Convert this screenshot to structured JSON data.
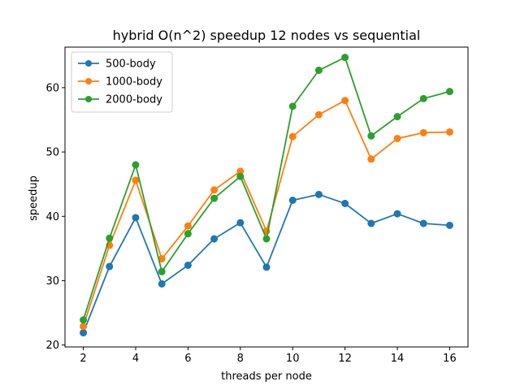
{
  "chart_data": {
    "type": "line",
    "title": "hybrid O(n^2) speedup 12 nodes vs sequential",
    "xlabel": "threads per node",
    "ylabel": "speedup",
    "x": [
      2,
      3,
      4,
      5,
      6,
      7,
      8,
      9,
      10,
      11,
      12,
      13,
      14,
      15,
      16
    ],
    "xlim": [
      1.3,
      16.7
    ],
    "ylim": [
      19.7,
      66.3
    ],
    "xticks": [
      2,
      4,
      6,
      8,
      10,
      12,
      14,
      16
    ],
    "yticks": [
      20,
      30,
      40,
      50,
      60
    ],
    "grid": false,
    "legend_position": "top-left",
    "series": [
      {
        "name": "500-body",
        "color": "#1f77b4",
        "values": [
          21.9,
          32.2,
          39.8,
          29.5,
          32.4,
          36.5,
          39.0,
          32.1,
          42.5,
          43.4,
          42.0,
          38.9,
          40.4,
          38.9,
          38.6
        ]
      },
      {
        "name": "1000-body",
        "color": "#ff7f0e",
        "values": [
          22.9,
          35.5,
          45.6,
          33.4,
          38.5,
          44.1,
          47.0,
          37.7,
          52.4,
          55.8,
          58.0,
          48.9,
          52.1,
          53.0,
          53.1
        ]
      },
      {
        "name": "2000-body",
        "color": "#2ca02c",
        "values": [
          23.9,
          36.6,
          48.0,
          31.4,
          37.3,
          42.8,
          46.2,
          36.5,
          57.1,
          62.7,
          64.7,
          52.5,
          55.5,
          58.3,
          59.4
        ]
      }
    ]
  }
}
